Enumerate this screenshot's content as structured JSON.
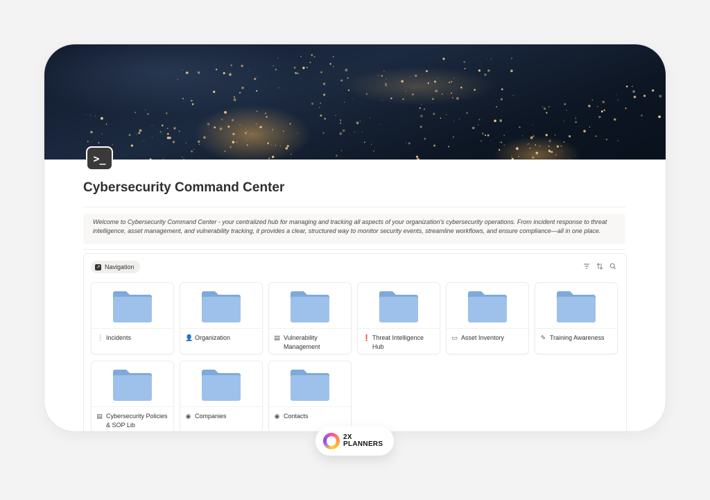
{
  "page": {
    "icon_glyph": ">_",
    "title": "Cybersecurity Command Center",
    "description": "Welcome to Cybersecurity Command Center - your centralized hub for managing and tracking all aspects of your organization's cybersecurity operations. From incident response to threat intelligence, asset management, and vulnerability tracking, it provides a clear, structured way to monitor security events, streamline workflows, and ensure compliance—all in one place."
  },
  "navigation": {
    "label": "Navigation",
    "tools": [
      "filter-icon",
      "sort-icon",
      "search-icon"
    ],
    "items": [
      {
        "label": "Incidents",
        "icon": "incident-icon",
        "glyph": "❕"
      },
      {
        "label": "Organization",
        "icon": "person-icon",
        "glyph": "👤"
      },
      {
        "label": "Vulnerability Management",
        "icon": "archive-icon",
        "glyph": "▤"
      },
      {
        "label": "Threat Intelligence Hub",
        "icon": "alert-icon",
        "glyph": "❗"
      },
      {
        "label": "Asset Inventory",
        "icon": "monitor-icon",
        "glyph": "▭"
      },
      {
        "label": "Training Awareness",
        "icon": "pencil-icon",
        "glyph": "✎"
      },
      {
        "label": "Cybersecurity Policies & SOP Lib",
        "icon": "archive-icon",
        "glyph": "▤"
      },
      {
        "label": "Companies",
        "icon": "building-icon",
        "glyph": "◉"
      },
      {
        "label": "Contacts",
        "icon": "contact-icon",
        "glyph": "◉"
      }
    ]
  },
  "brand": {
    "line1": "2X",
    "line2": "PLANNERS"
  },
  "colors": {
    "folder": "#9dc1ea",
    "folder_tab": "#7ea9db",
    "accent_text": "#2f2f2f"
  }
}
